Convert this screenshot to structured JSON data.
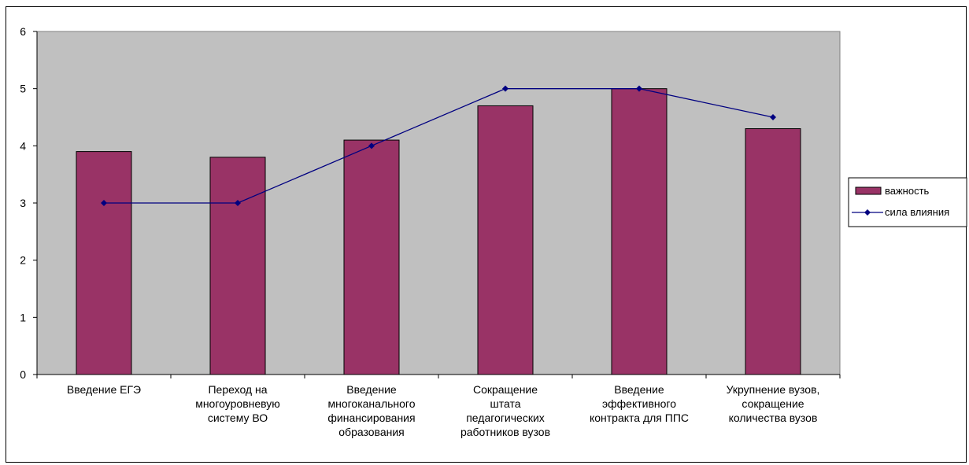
{
  "chart_data": {
    "type": "bar",
    "categories": [
      [
        "Введение ЕГЭ"
      ],
      [
        "Переход на",
        "многоуровневую",
        "систему ВО"
      ],
      [
        "Введение",
        "многоканального",
        "финансирования",
        "образования"
      ],
      [
        "Сокращение",
        "штата",
        "педагогических",
        "работников вузов"
      ],
      [
        "Введение",
        "эффективного",
        "контракта для ППС"
      ],
      [
        "Укрупнение вузов,",
        "сокращение",
        "количества вузов"
      ]
    ],
    "series": [
      {
        "name": "важность",
        "kind": "bar",
        "values": [
          3.9,
          3.8,
          4.1,
          4.7,
          5.0,
          4.3
        ],
        "color": "#993366"
      },
      {
        "name": "сила влияния",
        "kind": "line",
        "values": [
          3,
          3,
          4,
          5,
          5,
          4.5
        ],
        "color": "#000080"
      }
    ],
    "ylim": [
      0,
      6
    ],
    "yticks": [
      0,
      1,
      2,
      3,
      4,
      5,
      6
    ],
    "grid": false,
    "plot_background": "#c0c0c0",
    "legend_position": "right",
    "title": "",
    "xlabel": "",
    "ylabel": ""
  }
}
